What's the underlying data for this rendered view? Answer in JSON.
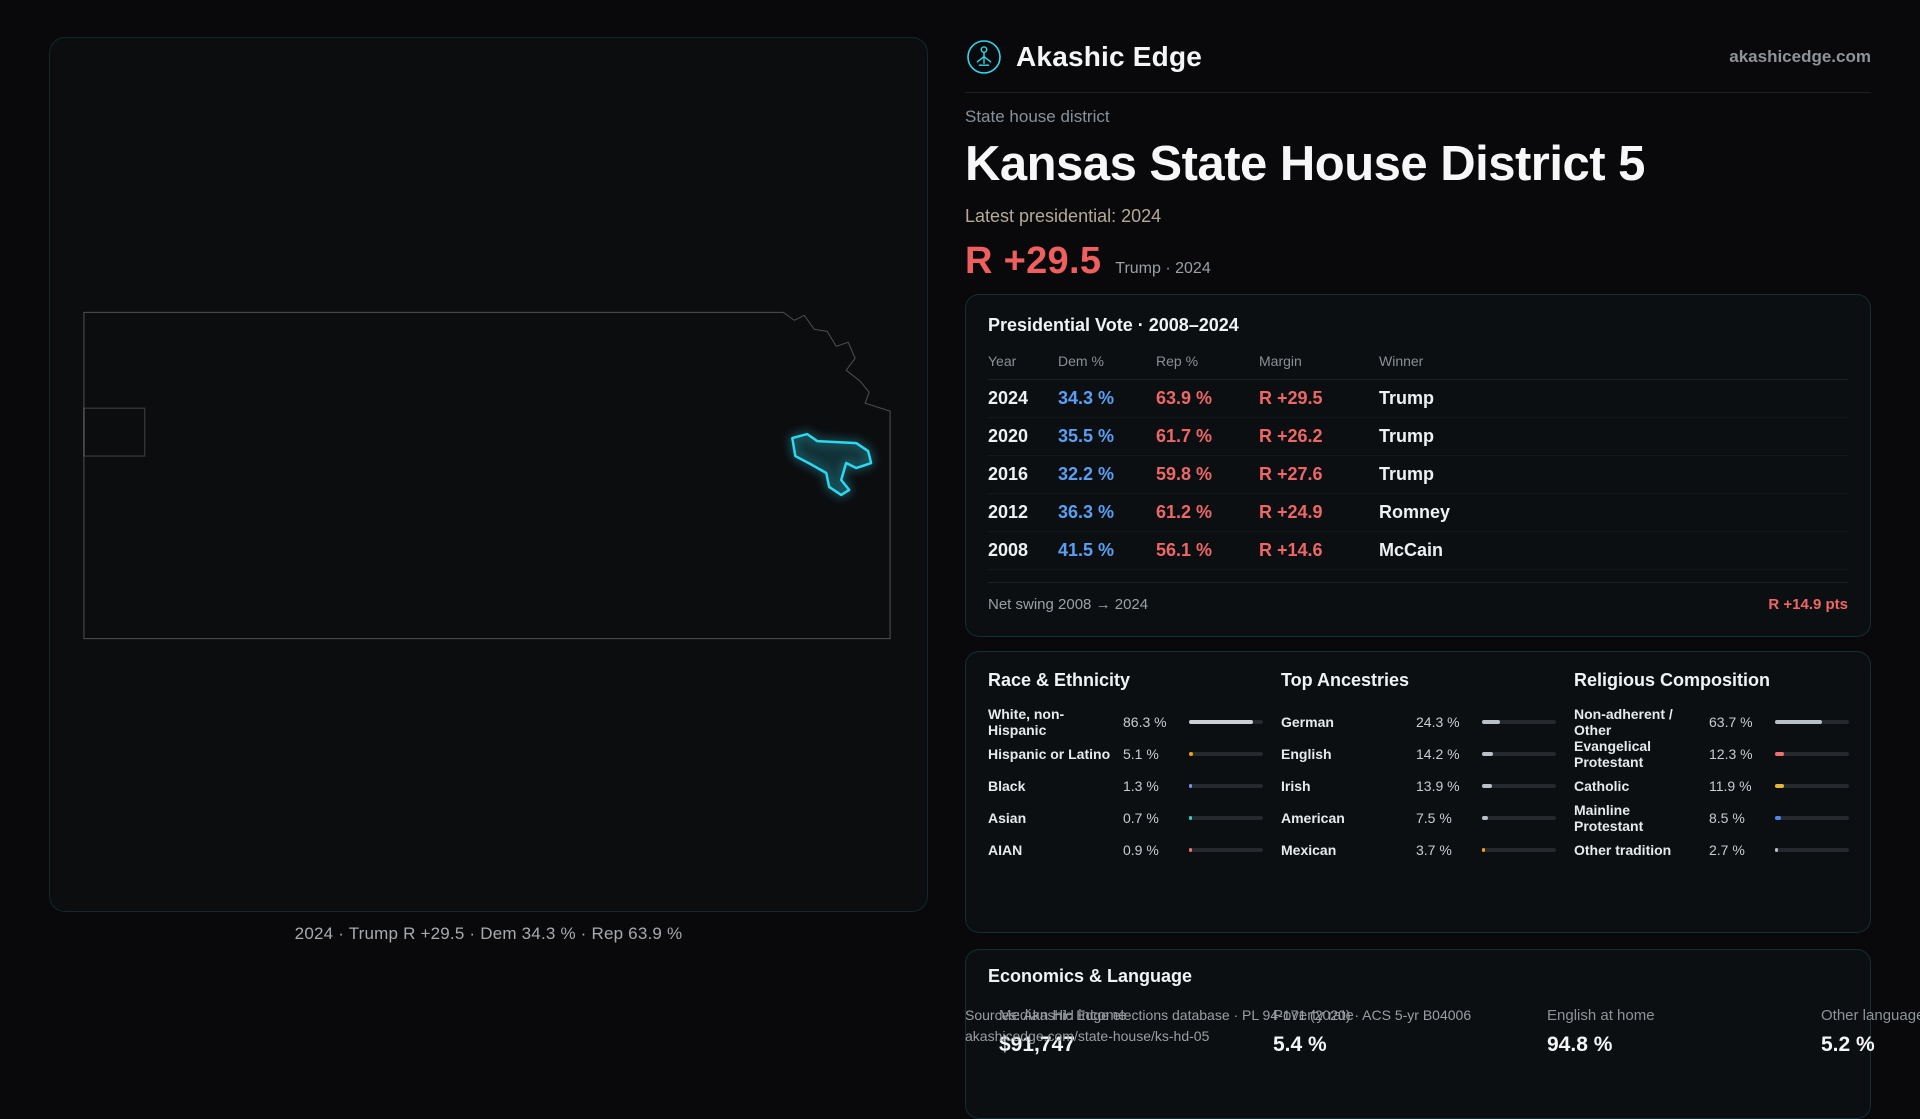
{
  "brand": {
    "name": "Akashic Edge",
    "domain": "akashicedge.com"
  },
  "hero": {
    "kicker": "State house district",
    "title": "Kansas State House District 5",
    "latest_label": "Latest presidential: 2024",
    "margin": "R +29.5",
    "margin_note": "Trump · 2024"
  },
  "map": {
    "caption": "2024 · Trump R +29.5 · Dem 34.3 % · Rep 63.9 %"
  },
  "presidential": {
    "title": "Presidential Vote · 2008–2024",
    "columns": [
      "Year",
      "Dem %",
      "Rep %",
      "Margin",
      "Winner"
    ],
    "rows": [
      {
        "year": "2024",
        "dem": "34.3 %",
        "rep": "63.9 %",
        "margin": "R +29.5",
        "winner": "Trump"
      },
      {
        "year": "2020",
        "dem": "35.5 %",
        "rep": "61.7 %",
        "margin": "R +26.2",
        "winner": "Trump"
      },
      {
        "year": "2016",
        "dem": "32.2 %",
        "rep": "59.8 %",
        "margin": "R +27.6",
        "winner": "Trump"
      },
      {
        "year": "2012",
        "dem": "36.3 %",
        "rep": "61.2 %",
        "margin": "R +24.9",
        "winner": "Romney"
      },
      {
        "year": "2008",
        "dem": "41.5 %",
        "rep": "56.1 %",
        "margin": "R +14.6",
        "winner": "McCain"
      }
    ],
    "footer_label": "Net swing 2008 → 2024",
    "footer_value": "R +14.9 pts"
  },
  "demographics": {
    "race": {
      "title": "Race & Ethnicity",
      "rows": [
        {
          "label": "White, non-Hispanic",
          "value": "86.3 %",
          "pct": 86.3,
          "color": "#cdd1d6"
        },
        {
          "label": "Hispanic or Latino",
          "value": "5.1 %",
          "pct": 5.1,
          "color": "#f59e0b"
        },
        {
          "label": "Black",
          "value": "1.3 %",
          "pct": 1.3,
          "color": "#818cf8"
        },
        {
          "label": "Asian",
          "value": "0.7 %",
          "pct": 0.7,
          "color": "#2dd4bf"
        },
        {
          "label": "AIAN",
          "value": "0.9 %",
          "pct": 0.9,
          "color": "#f47171"
        }
      ]
    },
    "ancestries": {
      "title": "Top Ancestries",
      "rows": [
        {
          "label": "German",
          "value": "24.3 %",
          "pct": 24.3,
          "color": "#b9bfc6"
        },
        {
          "label": "English",
          "value": "14.2 %",
          "pct": 14.2,
          "color": "#b9bfc6"
        },
        {
          "label": "Irish",
          "value": "13.9 %",
          "pct": 13.9,
          "color": "#b9bfc6"
        },
        {
          "label": "American",
          "value": "7.5 %",
          "pct": 7.5,
          "color": "#b9bfc6"
        },
        {
          "label": "Mexican",
          "value": "3.7 %",
          "pct": 3.7,
          "color": "#f59e0b"
        }
      ]
    },
    "religion": {
      "title": "Religious Composition",
      "rows": [
        {
          "label": "Non-adherent / Other",
          "value": "63.7 %",
          "pct": 63.7,
          "color": "#b9bfc6"
        },
        {
          "label": "Evangelical Protestant",
          "value": "12.3 %",
          "pct": 12.3,
          "color": "#ef6e6e"
        },
        {
          "label": "Catholic",
          "value": "11.9 %",
          "pct": 11.9,
          "color": "#e3b53b"
        },
        {
          "label": "Mainline Protestant",
          "value": "8.5 %",
          "pct": 8.5,
          "color": "#4f86ef"
        },
        {
          "label": "Other tradition",
          "value": "2.7 %",
          "pct": 2.7,
          "color": "#b9bfc6"
        }
      ]
    }
  },
  "economics": {
    "title": "Economics & Language",
    "stats": [
      {
        "label": "Median HH income",
        "value": "$91,747"
      },
      {
        "label": "Poverty rate",
        "value": "5.4 %"
      },
      {
        "label": "English at home",
        "value": "94.8 %"
      },
      {
        "label": "Other language",
        "value": "5.2 %"
      }
    ]
  },
  "footer": {
    "line1": "Sources: Akashic Edge elections database · PL 94-171 (2020) · ACS 5-yr B04006",
    "line2": "akashicedge.com/state-house/ks-hd-05"
  },
  "colors": {
    "accent_cyan": "#2ed8f0",
    "republican_red": "#ee6767",
    "democrat_blue": "#5a9ff5",
    "background": "#09090b"
  },
  "chart_data": [
    {
      "type": "table",
      "title": "Presidential Vote · 2008–2024",
      "columns": [
        "Year",
        "Dem %",
        "Rep %",
        "Margin",
        "Winner"
      ],
      "rows": [
        [
          "2024",
          34.3,
          63.9,
          "R +29.5",
          "Trump"
        ],
        [
          "2020",
          35.5,
          61.7,
          "R +26.2",
          "Trump"
        ],
        [
          "2016",
          32.2,
          59.8,
          "R +27.6",
          "Trump"
        ],
        [
          "2012",
          36.3,
          61.2,
          "R +24.9",
          "Romney"
        ],
        [
          "2008",
          41.5,
          56.1,
          "R +14.6",
          "McCain"
        ]
      ]
    },
    {
      "type": "bar",
      "title": "Race & Ethnicity",
      "categories": [
        "White, non-Hispanic",
        "Hispanic or Latino",
        "Black",
        "Asian",
        "AIAN"
      ],
      "values": [
        86.3,
        5.1,
        1.3,
        0.7,
        0.9
      ],
      "unit": "%"
    },
    {
      "type": "bar",
      "title": "Top Ancestries",
      "categories": [
        "German",
        "English",
        "Irish",
        "American",
        "Mexican"
      ],
      "values": [
        24.3,
        14.2,
        13.9,
        7.5,
        3.7
      ],
      "unit": "%"
    },
    {
      "type": "bar",
      "title": "Religious Composition",
      "categories": [
        "Non-adherent / Other",
        "Evangelical Protestant",
        "Catholic",
        "Mainline Protestant",
        "Other tradition"
      ],
      "values": [
        63.7,
        12.3,
        11.9,
        8.5,
        2.7
      ],
      "unit": "%"
    }
  ]
}
